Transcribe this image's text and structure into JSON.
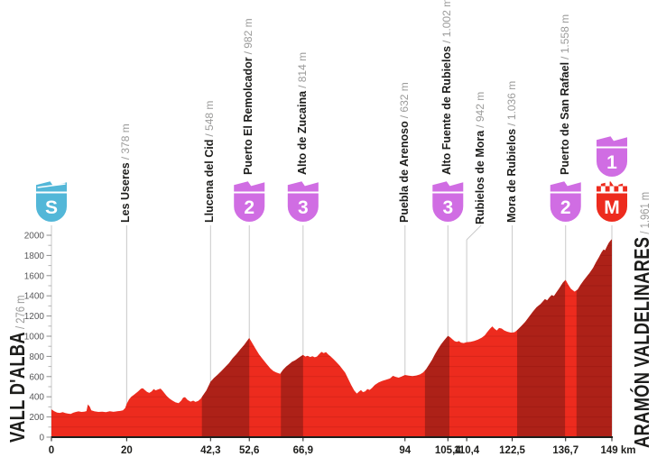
{
  "colors": {
    "bright_red": "#ed2b1e",
    "dark_red": "#ad2118",
    "stripe": "rgba(80,0,0,0.13)",
    "cyan": "#53b7d8",
    "magenta": "#d06de3",
    "finish_red": "#ed2b1e",
    "grid": "#c9c9c9",
    "axis": "#1d1d1b",
    "text_dark": "#1d1d1b",
    "text_gray": "#9b9b9a",
    "ytick_text": "#58585a",
    "badge_text": "#ffffff"
  },
  "chart_data": {
    "type": "area",
    "xlabel": "km",
    "x_unit": "km",
    "xlim": [
      0,
      149
    ],
    "ylim": [
      0,
      2000
    ],
    "y_major_step": 200,
    "y_minor_step": 100,
    "y_tick_labels": [
      "0",
      "200",
      "400",
      "600",
      "800",
      "1000",
      "1200",
      "1400",
      "1600",
      "1800",
      "2000"
    ],
    "start": {
      "name": "VALL D'ALBA",
      "alt": "/ 276 m"
    },
    "finish": {
      "name": "ARAMÓN VALDELINARES",
      "alt": "/ 1.961 m"
    },
    "x_ticks": [
      {
        "km": 0,
        "label": "0",
        "dx": 0
      },
      {
        "km": 20,
        "label": "20",
        "dx": 0
      },
      {
        "km": 42.3,
        "label": "42,3",
        "dx": 0
      },
      {
        "km": 52.6,
        "label": "52,6",
        "dx": 0
      },
      {
        "km": 66.9,
        "label": "66,9",
        "dx": 0
      },
      {
        "km": 94,
        "label": "94",
        "dx": 0
      },
      {
        "km": 105.4,
        "label": "105,4",
        "dx": 0
      },
      {
        "km": 110.4,
        "label": "110,4",
        "dx": 0
      },
      {
        "km": 122.5,
        "label": "122,5",
        "dx": 0
      },
      {
        "km": 136.7,
        "label": "136,7",
        "dx": 0
      },
      {
        "km": 149,
        "label": "149 km",
        "dx": 7
      }
    ],
    "waypoints": [
      {
        "km": 0,
        "name": "",
        "alt": "",
        "badges": [
          "S"
        ],
        "label_dx": 0
      },
      {
        "km": 20,
        "name": "Les Useres",
        "alt": "/ 378 m",
        "badges": [],
        "label_dx": 0
      },
      {
        "km": 42.3,
        "name": "Llucena del Cid",
        "alt": "/ 548 m",
        "badges": [],
        "label_dx": 0
      },
      {
        "km": 52.6,
        "name": "Puerto El Remolcador",
        "alt": "/ 982 m",
        "badges": [
          "2"
        ],
        "label_dx": 0
      },
      {
        "km": 66.9,
        "name": "Alto de Zucaina",
        "alt": "/ 814 m",
        "badges": [
          "3"
        ],
        "label_dx": 0
      },
      {
        "km": 94,
        "name": "Puebla de Arenoso",
        "alt": "/ 632 m",
        "badges": [],
        "label_dx": 0
      },
      {
        "km": 105.4,
        "name": "Alto Fuente de Rubielos",
        "alt": "/ 1.002 m",
        "badges": [
          "3"
        ],
        "label_dx": 0
      },
      {
        "km": 110.4,
        "name": "Rubielos de Mora",
        "alt": "/ 942 m",
        "badges": [],
        "label_dx": 16
      },
      {
        "km": 122.5,
        "name": "Mora de Rubielos",
        "alt": "/ 1.036 m",
        "badges": [],
        "label_dx": 0
      },
      {
        "km": 136.7,
        "name": "Puerto de San Rafael",
        "alt": "/ 1.558 m",
        "badges": [
          "2"
        ],
        "label_dx": 0
      },
      {
        "km": 149,
        "name": "",
        "alt": "",
        "badges": [
          "M",
          "1"
        ],
        "label_dx": 0
      }
    ],
    "climb_bands_km": [
      [
        40,
        52.6
      ],
      [
        61,
        66.9
      ],
      [
        99.3,
        105.8
      ],
      [
        123.8,
        136.55
      ],
      [
        139.6,
        149
      ]
    ],
    "profile": [
      [
        0,
        276
      ],
      [
        0.7,
        258
      ],
      [
        1.5,
        243
      ],
      [
        2.2,
        240
      ],
      [
        3,
        248
      ],
      [
        3.7,
        238
      ],
      [
        4.4,
        233
      ],
      [
        5.1,
        230
      ],
      [
        5.8,
        242
      ],
      [
        6.5,
        250
      ],
      [
        7.2,
        255
      ],
      [
        8,
        250
      ],
      [
        8.7,
        252
      ],
      [
        9.3,
        258
      ],
      [
        9.7,
        325
      ],
      [
        10.2,
        302
      ],
      [
        10.6,
        265
      ],
      [
        11.5,
        255
      ],
      [
        12.5,
        250
      ],
      [
        13.5,
        253
      ],
      [
        14.5,
        248
      ],
      [
        15.5,
        257
      ],
      [
        16.5,
        251
      ],
      [
        17.5,
        257
      ],
      [
        18.3,
        260
      ],
      [
        19,
        266
      ],
      [
        19.6,
        288
      ],
      [
        20,
        330
      ],
      [
        20.6,
        372
      ],
      [
        21.2,
        400
      ],
      [
        22,
        422
      ],
      [
        23,
        452
      ],
      [
        23.8,
        480
      ],
      [
        24.3,
        484
      ],
      [
        24.8,
        468
      ],
      [
        25.4,
        448
      ],
      [
        26,
        438
      ],
      [
        26.6,
        452
      ],
      [
        27.2,
        477
      ],
      [
        27.7,
        463
      ],
      [
        28.3,
        472
      ],
      [
        29,
        481
      ],
      [
        29.5,
        462
      ],
      [
        30,
        438
      ],
      [
        30.7,
        405
      ],
      [
        31.4,
        382
      ],
      [
        32.2,
        362
      ],
      [
        33,
        345
      ],
      [
        33.8,
        337
      ],
      [
        34.5,
        362
      ],
      [
        35,
        390
      ],
      [
        35.5,
        396
      ],
      [
        36.2,
        368
      ],
      [
        37,
        352
      ],
      [
        37.7,
        362
      ],
      [
        38.3,
        349
      ],
      [
        39,
        358
      ],
      [
        39.7,
        382
      ],
      [
        40.4,
        420
      ],
      [
        41.2,
        462
      ],
      [
        42.3,
        548
      ],
      [
        43.2,
        585
      ],
      [
        44.2,
        618
      ],
      [
        45.2,
        655
      ],
      [
        46.2,
        695
      ],
      [
        47.2,
        732
      ],
      [
        48.2,
        782
      ],
      [
        49.2,
        822
      ],
      [
        50.2,
        868
      ],
      [
        51.2,
        912
      ],
      [
        52,
        952
      ],
      [
        52.6,
        982
      ],
      [
        53.3,
        938
      ],
      [
        54.2,
        880
      ],
      [
        55.2,
        820
      ],
      [
        56.2,
        772
      ],
      [
        57.2,
        726
      ],
      [
        58.2,
        680
      ],
      [
        59,
        655
      ],
      [
        59.8,
        640
      ],
      [
        60.8,
        628
      ],
      [
        61.6,
        668
      ],
      [
        62.4,
        698
      ],
      [
        63.2,
        722
      ],
      [
        64,
        746
      ],
      [
        64.8,
        762
      ],
      [
        65.6,
        782
      ],
      [
        66.3,
        800
      ],
      [
        66.9,
        814
      ],
      [
        67.5,
        798
      ],
      [
        68.1,
        806
      ],
      [
        68.8,
        794
      ],
      [
        69.4,
        802
      ],
      [
        70,
        791
      ],
      [
        70.6,
        798
      ],
      [
        71.2,
        822
      ],
      [
        71.8,
        845
      ],
      [
        72.4,
        832
      ],
      [
        73,
        843
      ],
      [
        73.6,
        820
      ],
      [
        74.3,
        797
      ],
      [
        75,
        772
      ],
      [
        75.8,
        742
      ],
      [
        76.6,
        710
      ],
      [
        77.4,
        672
      ],
      [
        78.1,
        638
      ],
      [
        78.9,
        578
      ],
      [
        79.7,
        515
      ],
      [
        80.5,
        462
      ],
      [
        81.2,
        432
      ],
      [
        81.8,
        452
      ],
      [
        82.3,
        466
      ],
      [
        82.8,
        446
      ],
      [
        83.4,
        453
      ],
      [
        84,
        477
      ],
      [
        84.6,
        468
      ],
      [
        85.2,
        487
      ],
      [
        86,
        518
      ],
      [
        87,
        542
      ],
      [
        88,
        558
      ],
      [
        89,
        570
      ],
      [
        90,
        581
      ],
      [
        90.8,
        607
      ],
      [
        91.5,
        597
      ],
      [
        92.3,
        589
      ],
      [
        93.1,
        600
      ],
      [
        94,
        616
      ],
      [
        95,
        610
      ],
      [
        96,
        605
      ],
      [
        97,
        611
      ],
      [
        98,
        621
      ],
      [
        98.8,
        641
      ],
      [
        99.6,
        672
      ],
      [
        100.4,
        718
      ],
      [
        101.2,
        766
      ],
      [
        102,
        822
      ],
      [
        102.8,
        872
      ],
      [
        103.6,
        920
      ],
      [
        104.4,
        958
      ],
      [
        105.4,
        1002
      ],
      [
        106,
        990
      ],
      [
        106.6,
        970
      ],
      [
        107.2,
        951
      ],
      [
        107.8,
        944
      ],
      [
        108.3,
        952
      ],
      [
        108.9,
        937
      ],
      [
        109.6,
        932
      ],
      [
        110.4,
        941
      ],
      [
        111.4,
        944
      ],
      [
        112.4,
        954
      ],
      [
        113.4,
        967
      ],
      [
        114.4,
        986
      ],
      [
        115.2,
        1008
      ],
      [
        115.9,
        1042
      ],
      [
        116.6,
        1075
      ],
      [
        117.2,
        1097
      ],
      [
        117.8,
        1074
      ],
      [
        118.4,
        1057
      ],
      [
        119,
        1081
      ],
      [
        119.7,
        1076
      ],
      [
        120.4,
        1057
      ],
      [
        121.2,
        1045
      ],
      [
        122,
        1037
      ],
      [
        122.5,
        1036
      ],
      [
        123.2,
        1041
      ],
      [
        124,
        1066
      ],
      [
        125,
        1104
      ],
      [
        126,
        1143
      ],
      [
        127,
        1193
      ],
      [
        128,
        1243
      ],
      [
        129,
        1287
      ],
      [
        130,
        1317
      ],
      [
        130.6,
        1341
      ],
      [
        131.2,
        1367
      ],
      [
        131.8,
        1355
      ],
      [
        132.4,
        1384
      ],
      [
        133,
        1407
      ],
      [
        133.6,
        1397
      ],
      [
        134.2,
        1431
      ],
      [
        135,
        1474
      ],
      [
        136,
        1531
      ],
      [
        136.7,
        1558
      ],
      [
        137.4,
        1510
      ],
      [
        138.1,
        1470
      ],
      [
        139.1,
        1442
      ],
      [
        139.9,
        1462
      ],
      [
        140.7,
        1510
      ],
      [
        141.5,
        1552
      ],
      [
        142.3,
        1590
      ],
      [
        143.1,
        1628
      ],
      [
        144,
        1676
      ],
      [
        144.8,
        1733
      ],
      [
        145.6,
        1784
      ],
      [
        146.3,
        1833
      ],
      [
        146.8,
        1858
      ],
      [
        147.2,
        1850
      ],
      [
        147.6,
        1883
      ],
      [
        148.2,
        1927
      ],
      [
        148.7,
        1949
      ],
      [
        149,
        1961
      ]
    ]
  }
}
